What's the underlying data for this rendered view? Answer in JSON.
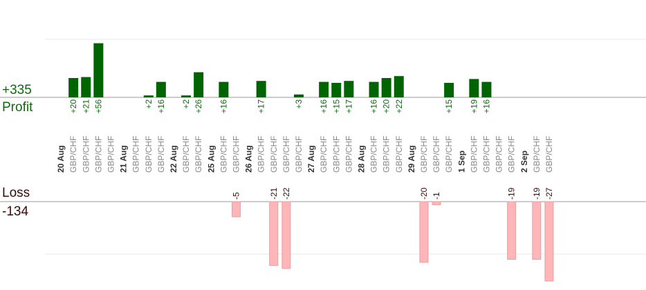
{
  "summary": {
    "profit_total": "+335",
    "profit_label": "Profit",
    "loss_label": "Loss",
    "loss_total": "-134"
  },
  "colors": {
    "profit_bar": "#006400",
    "loss_bar": "#ffb6b8",
    "profit_text": "#0b6b0b",
    "loss_text": "#3a0b0b",
    "grid": "#e8e8e8",
    "baseline": "#999999",
    "pair_text": "#888888",
    "date_text": "#333333"
  },
  "chart_data": {
    "type": "bar",
    "title": "",
    "xlabel": "",
    "ylabel": "",
    "grid": true,
    "categories": [
      "20 Aug",
      "GBP/CHF",
      "GBP/CHF",
      "GBP/CHF",
      "GBP/CHF",
      "21 Aug",
      "GBP/CHF",
      "GBP/CHF",
      "GBP/CHF",
      "22 Aug",
      "GBP/CHF",
      "GBP/CHF",
      "25 Aug",
      "GBP/CHF",
      "GBP/CHF",
      "26 Aug",
      "GBP/CHF",
      "GBP/CHF",
      "GBP/CHF",
      "GBP/CHF",
      "27 Aug",
      "GBP/CHF",
      "GBP/CHF",
      "GBP/CHF",
      "28 Aug",
      "GBP/CHF",
      "GBP/CHF",
      "GBP/CHF",
      "29 Aug",
      "GBP/CHF",
      "GBP/CHF",
      "GBP/CHF",
      "1 Sep",
      "GBP/CHF",
      "GBP/CHF",
      "GBP/CHF",
      "GBP/CHF",
      "2 Sep",
      "GBP/CHF",
      "GBP/CHF"
    ],
    "values": [
      null,
      20,
      21,
      56,
      null,
      null,
      null,
      2,
      16,
      null,
      2,
      26,
      null,
      16,
      -5,
      null,
      17,
      -21,
      -22,
      3,
      null,
      16,
      15,
      17,
      null,
      16,
      20,
      22,
      null,
      -20,
      -1,
      15,
      null,
      19,
      16,
      null,
      -19,
      null,
      -19,
      -27
    ],
    "value_labels": [
      "",
      "+20",
      "+21",
      "+56",
      "",
      "",
      "",
      "+2",
      "+16",
      "",
      "+2",
      "+26",
      "",
      "+16",
      "-5",
      "",
      "+17",
      "-21",
      "-22",
      "+3",
      "",
      "+16",
      "+15",
      "+17",
      "",
      "+16",
      "+20",
      "+22",
      "",
      "-20",
      "-1",
      "+15",
      "",
      "+19",
      "+16",
      "",
      "-19",
      "",
      "-19",
      "-27"
    ]
  }
}
